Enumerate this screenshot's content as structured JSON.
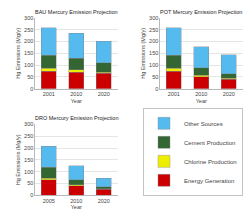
{
  "chart_data": [
    {
      "type": "bar",
      "stacked": true,
      "title": "BAU Mercury Emission Projection",
      "xlabel": "Year",
      "ylabel": "Hg Emissions (Mg/y)",
      "categories": [
        "2001",
        "2010",
        "2020"
      ],
      "series": [
        {
          "name": "Energy Generation",
          "color": "#CC0000",
          "values": [
            75,
            70,
            65
          ]
        },
        {
          "name": "Chlorine Production",
          "color": "#EEEE00",
          "values": [
            12,
            10,
            5
          ]
        },
        {
          "name": "Cement Production",
          "color": "#336633",
          "values": [
            55,
            50,
            40
          ]
        },
        {
          "name": "Other Sources",
          "color": "#55BBEE",
          "values": [
            115,
            105,
            90
          ]
        }
      ],
      "ylim": [
        0,
        300
      ],
      "yticks": [
        0,
        50,
        100,
        150,
        200,
        250,
        300
      ],
      "grid": true,
      "legend": "lower right"
    },
    {
      "type": "bar",
      "stacked": true,
      "title": "POT Mercury Emission Projection",
      "xlabel": "Year",
      "ylabel": "Hg Emissions (Mg/y)",
      "categories": [
        "2001",
        "2010",
        "2020"
      ],
      "series": [
        {
          "name": "Energy Generation",
          "color": "#CC0000",
          "values": [
            75,
            50,
            40
          ]
        },
        {
          "name": "Chlorine Production",
          "color": "#EEEE00",
          "values": [
            12,
            8,
            4
          ]
        },
        {
          "name": "Cement Production",
          "color": "#336633",
          "values": [
            55,
            30,
            20
          ]
        },
        {
          "name": "Other Sources",
          "color": "#55BBEE",
          "values": [
            115,
            90,
            80
          ]
        }
      ],
      "ylim": [
        0,
        300
      ],
      "yticks": [
        0,
        50,
        100,
        150,
        200,
        250,
        300
      ],
      "grid": true,
      "legend": "lower right"
    },
    {
      "type": "bar",
      "stacked": true,
      "title": "DRO Mercury Emission Projection",
      "xlabel": "Year",
      "ylabel": "Hg Emissions (Mg/y)",
      "categories": [
        "2005",
        "2010",
        "2020"
      ],
      "series": [
        {
          "name": "Energy Generation",
          "color": "#CC0000",
          "values": [
            65,
            40,
            25
          ]
        },
        {
          "name": "Chlorine Production",
          "color": "#EEEE00",
          "values": [
            8,
            4,
            2
          ]
        },
        {
          "name": "Cement Production",
          "color": "#336633",
          "values": [
            45,
            22,
            10
          ]
        },
        {
          "name": "Other Sources",
          "color": "#55BBEE",
          "values": [
            90,
            60,
            35
          ]
        }
      ],
      "ylim": [
        0,
        300
      ],
      "yticks": [
        0,
        50,
        100,
        150,
        200,
        250,
        300
      ],
      "grid": true,
      "legend": "lower right"
    }
  ]
}
